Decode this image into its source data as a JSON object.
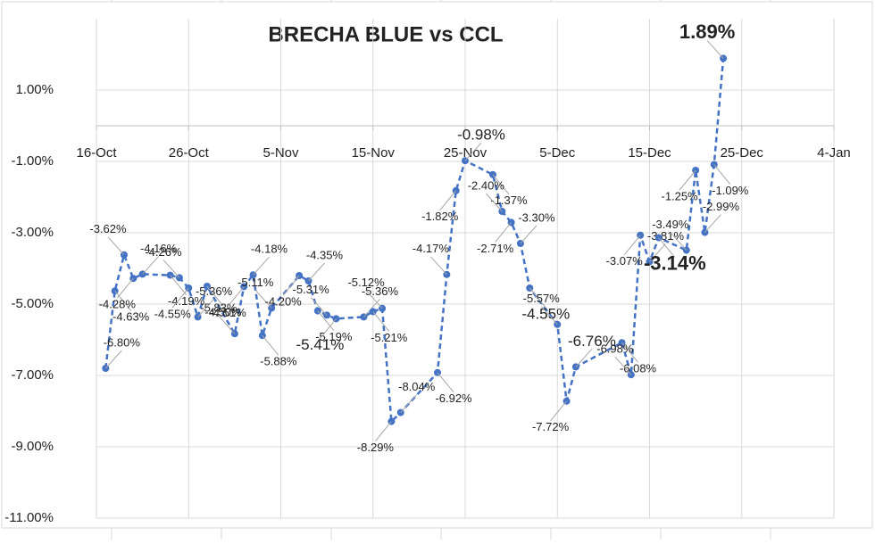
{
  "chart_data": {
    "type": "line",
    "title": "BRECHA BLUE vs CCL",
    "x": [
      1,
      2,
      3,
      4,
      5,
      8,
      9,
      10,
      11,
      12,
      15,
      16,
      17,
      18,
      19,
      22,
      23,
      24,
      25,
      26,
      29,
      30,
      31,
      32,
      33,
      37,
      38,
      39,
      40,
      43,
      44,
      45,
      46,
      47,
      50,
      51,
      52,
      57,
      58,
      59,
      60,
      61,
      64,
      65,
      66,
      67,
      68
    ],
    "series": [
      {
        "color": "#4472c4",
        "values": [
          -6.8,
          -4.63,
          -3.62,
          -4.28,
          -4.16,
          -4.19,
          -4.26,
          -4.55,
          -5.36,
          -4.5,
          -5.83,
          -4.51,
          -4.18,
          -5.88,
          -5.11,
          -4.2,
          -4.35,
          -5.19,
          -5.31,
          -5.41,
          -5.36,
          -5.21,
          -5.12,
          -8.29,
          -8.04,
          -6.92,
          -4.17,
          -1.82,
          -0.98,
          -1.37,
          -2.4,
          -2.71,
          -3.3,
          -4.55,
          -5.57,
          -7.72,
          -6.76,
          -6.08,
          -6.98,
          -3.07,
          -3.81,
          -3.14,
          -3.49,
          -1.25,
          -2.99,
          -1.09,
          1.89
        ],
        "value_labels": [
          "-6.80%",
          "-4.63%",
          "-3.62%",
          "-4.28%",
          "-4.16%",
          "-4.19%",
          "-4.26%",
          "-4.55%",
          "-5.36%",
          "-4.50%",
          "-5.83%",
          "-4.51%",
          "-4.18%",
          "-5.88%",
          "-5.11%",
          "-4.20%",
          "-4.35%",
          "-5.19%",
          "-5.31%",
          "-5.41%",
          "-5.36%",
          "-5.21%",
          "-5.12%",
          "-8.29%",
          "-8.04%",
          "-6.92%",
          "-4.17%",
          "-1.82%",
          "-0.98%",
          "-1.37%",
          "-2.40%",
          "-2.71%",
          "-3.30%",
          "-4.55%",
          "-5.57%",
          "-7.72%",
          "-6.76%",
          "-6.08%",
          "-6.98%",
          "-3.07%",
          "-3.81%",
          "-3.14%",
          "-3.49%",
          "-1.25%",
          "-2.99%",
          "-1.09%",
          "1.89%"
        ]
      }
    ],
    "xlim": [
      0,
      80
    ],
    "xticks": [
      {
        "value": 0,
        "label": "16-Oct"
      },
      {
        "value": 10,
        "label": "26-Oct"
      },
      {
        "value": 20,
        "label": "5-Nov"
      },
      {
        "value": 30,
        "label": "15-Nov"
      },
      {
        "value": 40,
        "label": "25-Nov"
      },
      {
        "value": 50,
        "label": "5-Dec"
      },
      {
        "value": 60,
        "label": "15-Dec"
      },
      {
        "value": 70,
        "label": "25-Dec"
      },
      {
        "value": 80,
        "label": "4-Jan"
      }
    ],
    "ylim": [
      -11,
      3
    ],
    "yticks": [
      {
        "value": 1,
        "label": "1.00%"
      },
      {
        "value": -1,
        "label": "-1.00%"
      },
      {
        "value": -3,
        "label": "-3.00%"
      },
      {
        "value": -5,
        "label": "-5.00%"
      },
      {
        "value": -7,
        "label": "-7.00%"
      },
      {
        "value": -9,
        "label": "-9.00%"
      },
      {
        "value": -11,
        "label": "-11.00%"
      }
    ],
    "grid": true
  }
}
